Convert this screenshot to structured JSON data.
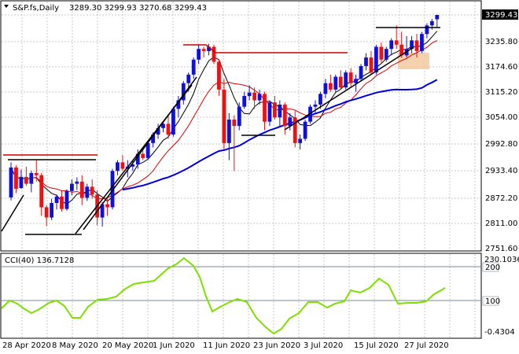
{
  "main_panel": {
    "header": {
      "symbol": "S&P.fs,Daily",
      "ohlc": "3289.30 3299.93 3270.68 3299.43"
    },
    "price_axis": [
      "3235.80",
      "3174.60",
      "3115.20",
      "3054.00",
      "2992.80",
      "2933.40",
      "2872.20",
      "2811.00",
      "2751.60"
    ],
    "current_price": "3299.43",
    "candles": [
      [
        2873,
        2955,
        2866,
        2943
      ],
      [
        2943,
        2948,
        2883,
        2893
      ],
      [
        2895,
        2938,
        2893,
        2921
      ],
      [
        2921,
        2945,
        2900,
        2905
      ],
      [
        2905,
        2935,
        2885,
        2930
      ],
      [
        2930,
        2960,
        2910,
        2925
      ],
      [
        2925,
        2930,
        2830,
        2850
      ],
      [
        2850,
        2855,
        2806,
        2826
      ],
      [
        2826,
        2870,
        2820,
        2860
      ],
      [
        2860,
        2880,
        2845,
        2875
      ],
      [
        2875,
        2890,
        2840,
        2846
      ],
      [
        2846,
        2892,
        2842,
        2888
      ],
      [
        2888,
        2915,
        2878,
        2905
      ],
      [
        2905,
        2920,
        2890,
        2910
      ],
      [
        2910,
        2925,
        2855,
        2872
      ],
      [
        2872,
        2905,
        2865,
        2898
      ],
      [
        2898,
        2915,
        2870,
        2880
      ],
      [
        2880,
        2890,
        2808,
        2826
      ],
      [
        2826,
        2862,
        2805,
        2857
      ],
      [
        2857,
        2870,
        2830,
        2850
      ],
      [
        2850,
        2940,
        2845,
        2935
      ],
      [
        2935,
        2960,
        2925,
        2955
      ],
      [
        2955,
        2972,
        2935,
        2940
      ],
      [
        2940,
        2960,
        2920,
        2945
      ],
      [
        2945,
        2960,
        2935,
        2950
      ],
      [
        2950,
        2985,
        2940,
        2975
      ],
      [
        2975,
        2990,
        2960,
        2965
      ],
      [
        2965,
        3005,
        2960,
        3000
      ],
      [
        3000,
        3025,
        2990,
        3020
      ],
      [
        3020,
        3045,
        3010,
        3035
      ],
      [
        3035,
        3050,
        3025,
        3045
      ],
      [
        3045,
        3065,
        3010,
        3020
      ],
      [
        3020,
        3085,
        3015,
        3080
      ],
      [
        3080,
        3110,
        3060,
        3100
      ],
      [
        3100,
        3145,
        3090,
        3140
      ],
      [
        3140,
        3165,
        3120,
        3160
      ],
      [
        3160,
        3200,
        3150,
        3195
      ],
      [
        3195,
        3230,
        3185,
        3220
      ],
      [
        3220,
        3225,
        3200,
        3215
      ],
      [
        3215,
        3232,
        3205,
        3225
      ],
      [
        3225,
        3230,
        3185,
        3190
      ],
      [
        3190,
        3195,
        3110,
        3125
      ],
      [
        3125,
        3150,
        2985,
        3000
      ],
      [
        3000,
        3070,
        2960,
        3055
      ],
      [
        3055,
        3065,
        2935,
        3040
      ],
      [
        3040,
        3095,
        3030,
        3085
      ],
      [
        3085,
        3120,
        3080,
        3110
      ],
      [
        3110,
        3135,
        3100,
        3118
      ],
      [
        3118,
        3130,
        3080,
        3100
      ],
      [
        3100,
        3125,
        3090,
        3115
      ],
      [
        3115,
        3120,
        3030,
        3050
      ],
      [
        3050,
        3100,
        3040,
        3095
      ],
      [
        3095,
        3110,
        3055,
        3060
      ],
      [
        3060,
        3100,
        3040,
        3090
      ],
      [
        3090,
        3095,
        3020,
        3040
      ],
      [
        3040,
        3070,
        3030,
        3060
      ],
      [
        3060,
        3075,
        2990,
        3000
      ],
      [
        3000,
        3020,
        2985,
        3010
      ],
      [
        3010,
        3055,
        3005,
        3050
      ],
      [
        3050,
        3090,
        3045,
        3085
      ],
      [
        3085,
        3100,
        3070,
        3090
      ],
      [
        3090,
        3120,
        3080,
        3115
      ],
      [
        3115,
        3150,
        3105,
        3140
      ],
      [
        3140,
        3160,
        3120,
        3125
      ],
      [
        3125,
        3160,
        3120,
        3155
      ],
      [
        3155,
        3170,
        3125,
        3130
      ],
      [
        3130,
        3170,
        3125,
        3165
      ],
      [
        3165,
        3175,
        3130,
        3140
      ],
      [
        3140,
        3160,
        3120,
        3150
      ],
      [
        3150,
        3185,
        3145,
        3180
      ],
      [
        3180,
        3210,
        3170,
        3200
      ],
      [
        3200,
        3215,
        3160,
        3165
      ],
      [
        3165,
        3230,
        3160,
        3225
      ],
      [
        3225,
        3235,
        3185,
        3195
      ],
      [
        3195,
        3225,
        3190,
        3220
      ],
      [
        3220,
        3245,
        3205,
        3240
      ],
      [
        3240,
        3275,
        3220,
        3230
      ],
      [
        3230,
        3260,
        3200,
        3205
      ],
      [
        3205,
        3250,
        3200,
        3220
      ],
      [
        3220,
        3250,
        3210,
        3240
      ],
      [
        3240,
        3255,
        3200,
        3215
      ],
      [
        3215,
        3260,
        3210,
        3255
      ],
      [
        3255,
        3280,
        3245,
        3275
      ],
      [
        3275,
        3290,
        3265,
        3285
      ],
      [
        3289.3,
        3299.93,
        3270.68,
        3299.43
      ]
    ]
  },
  "cci_panel": {
    "label": "CCI(40) 136.7128",
    "axis": {
      "top": "230.1036",
      "level_200": "200",
      "level_100": "100",
      "bottom": "-0.4304"
    }
  },
  "date_axis": [
    "28 Apr 2020",
    "8 May 2020",
    "20 May 2020",
    "1 Jun 2020",
    "11 Jun 2020",
    "23 Jun 2020",
    "3 Jul 2020",
    "15 Jul 2020",
    "27 Jul 2020"
  ],
  "colors": {
    "bull": "#1010dd",
    "bear": "#ee1111",
    "ma_black": "#000000",
    "ma_red": "#dd0000",
    "ma_blue": "#0000dd",
    "cci": "#7fe000",
    "resistance": "#cc0000",
    "trend": "#000000",
    "highlight": "#f5c9a0",
    "grid": "#c8c8c8"
  }
}
